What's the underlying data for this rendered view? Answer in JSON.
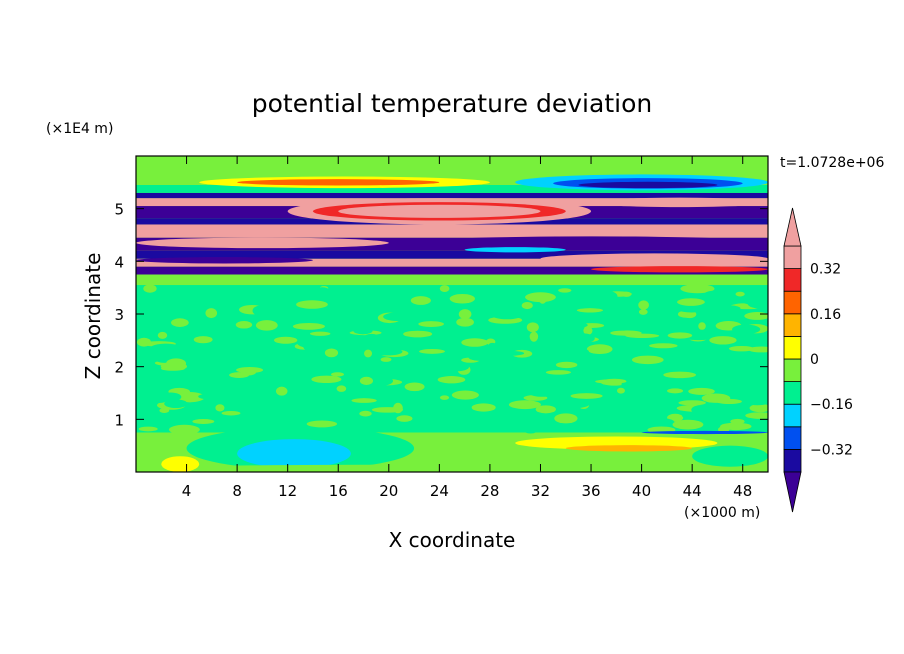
{
  "chart_data": {
    "type": "heatmap",
    "title": "potential temperature deviation",
    "xlabel": "X coordinate",
    "ylabel": "Z coordinate",
    "x_units": "(×1000 m)",
    "y_units": "(×1E4 m)",
    "time_label": "t=1.0728e+06",
    "xlim": [
      0,
      50
    ],
    "ylim": [
      0,
      6
    ],
    "x_ticks": [
      "4",
      "8",
      "12",
      "16",
      "20",
      "24",
      "28",
      "32",
      "36",
      "40",
      "44",
      "48"
    ],
    "y_ticks": [
      "1",
      "2",
      "3",
      "4",
      "5"
    ],
    "colorbar": {
      "labels": [
        "0.32",
        "0.16",
        "0",
        "-0.16",
        "-0.32"
      ],
      "label_values": [
        0.32,
        0.16,
        0,
        -0.16,
        -0.32
      ],
      "levels": [
        -0.4,
        -0.32,
        -0.24,
        -0.16,
        -0.08,
        0,
        0.08,
        0.16,
        0.24,
        0.32,
        0.4
      ],
      "colors": [
        "#3c0096",
        "#1a0aa0",
        "#0050f0",
        "#00d2ff",
        "#00f090",
        "#78f03c",
        "#ffff00",
        "#ffb400",
        "#ff6400",
        "#f02828",
        "#f0a0a0"
      ],
      "extend": "both"
    },
    "bands": [
      {
        "z_range": [
          0,
          0.7
        ],
        "value": 0.04,
        "note": "near-surface green with light-blue pockets near x 8-18 and yellow streaks near x 32-44"
      },
      {
        "z_range": [
          0.7,
          3.6
        ],
        "value": 0.0,
        "note": "mottled green / light green small-scale noise"
      },
      {
        "z_range": [
          3.6,
          5.6
        ],
        "value": 0.0,
        "note": "strong alternating positive (pink/red) and negative (purple/blue) layers"
      },
      {
        "z_range": [
          5.6,
          6.0
        ],
        "value": 0.04,
        "note": "light green top"
      }
    ]
  }
}
